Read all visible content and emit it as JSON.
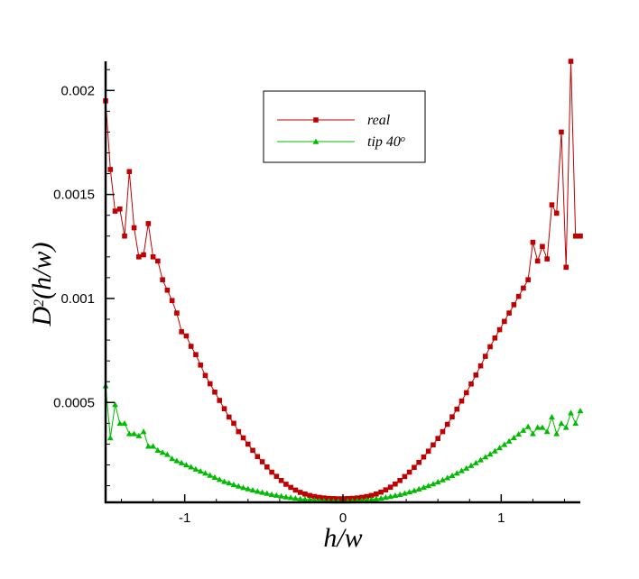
{
  "chart_data": {
    "type": "line",
    "xlabel": "h/w",
    "ylabel": {
      "base": "D",
      "sup": "2",
      "rest": "(h/w)"
    },
    "xlim": [
      -1.5,
      1.5
    ],
    "ylim": [
      2e-05,
      0.00214
    ],
    "x_ticks": [
      {
        "value": -1,
        "label": "-1"
      },
      {
        "value": 0,
        "label": "0"
      },
      {
        "value": 1,
        "label": "1"
      }
    ],
    "y_ticks": [
      {
        "value": 0.0005,
        "label": "0.0005"
      },
      {
        "value": 0.001,
        "label": "0.001"
      },
      {
        "value": 0.0015,
        "label": "0.0015"
      },
      {
        "value": 0.002,
        "label": "0.002"
      }
    ],
    "legend": {
      "placement": "top-center"
    },
    "series": [
      {
        "name": "real",
        "name_sup": "",
        "color": "#c00000",
        "marker": "square",
        "x": [
          -1.5,
          -1.47,
          -1.44,
          -1.41,
          -1.38,
          -1.35,
          -1.32,
          -1.29,
          -1.26,
          -1.23,
          -1.2,
          -1.17,
          -1.14,
          -1.11,
          -1.08,
          -1.05,
          -1.02,
          -0.99,
          -0.96,
          -0.93,
          -0.9,
          -0.87,
          -0.84,
          -0.81,
          -0.78,
          -0.75,
          -0.72,
          -0.69,
          -0.66,
          -0.63,
          -0.6,
          -0.57,
          -0.54,
          -0.51,
          -0.48,
          -0.45,
          -0.42,
          -0.39,
          -0.36,
          -0.33,
          -0.3,
          -0.27,
          -0.24,
          -0.21,
          -0.18,
          -0.15,
          -0.12,
          -0.09,
          -0.06,
          -0.03,
          0.0,
          0.03,
          0.06,
          0.09,
          0.12,
          0.15,
          0.18,
          0.21,
          0.24,
          0.27,
          0.3,
          0.33,
          0.36,
          0.39,
          0.42,
          0.45,
          0.48,
          0.51,
          0.54,
          0.57,
          0.6,
          0.63,
          0.66,
          0.69,
          0.72,
          0.75,
          0.78,
          0.81,
          0.84,
          0.87,
          0.9,
          0.93,
          0.96,
          0.99,
          1.02,
          1.05,
          1.08,
          1.11,
          1.14,
          1.17,
          1.2,
          1.23,
          1.26,
          1.29,
          1.32,
          1.35,
          1.38,
          1.41,
          1.44,
          1.47,
          1.5
        ],
        "y": [
          0.00195,
          0.00162,
          0.00142,
          0.00143,
          0.0013,
          0.00161,
          0.00134,
          0.0012,
          0.00121,
          0.00136,
          0.0012,
          0.00118,
          0.00109,
          0.00104,
          0.00099,
          0.00093,
          0.00084,
          0.00082,
          0.00077,
          0.00073,
          0.00068,
          0.00063,
          0.00059,
          0.00055,
          0.00051,
          0.00047,
          0.00043,
          0.0004,
          0.00036,
          0.00033,
          0.0003,
          0.00027,
          0.00024,
          0.000215,
          0.00019,
          0.000165,
          0.000145,
          0.000125,
          0.000107,
          9.2e-05,
          7.9e-05,
          6.8e-05,
          6e-05,
          5.3e-05,
          4.8e-05,
          4.4e-05,
          4.1e-05,
          3.9e-05,
          3.8e-05,
          3.7e-05,
          3.7e-05,
          3.8e-05,
          3.9e-05,
          4.1e-05,
          4.4e-05,
          4.8e-05,
          5.3e-05,
          6e-05,
          6.9e-05,
          8e-05,
          9.3e-05,
          0.000108,
          0.000125,
          0.000144,
          0.000165,
          0.000188,
          0.000212,
          0.000238,
          0.000266,
          0.000296,
          0.000327,
          0.00036,
          0.000395,
          0.000431,
          0.000468,
          0.000507,
          0.000547,
          0.000589,
          0.000632,
          0.000676,
          0.000722,
          0.000768,
          0.00081,
          0.00085,
          0.00089,
          0.00093,
          0.00097,
          0.00101,
          0.00105,
          0.00109,
          0.00127,
          0.00118,
          0.00125,
          0.00119,
          0.00145,
          0.00141,
          0.0018,
          0.00115,
          0.00214,
          0.0013,
          0.0013
        ]
      },
      {
        "name": "tip 40",
        "name_sup": "o",
        "color": "#00bb00",
        "marker": "triangle",
        "x": [
          -1.5,
          -1.47,
          -1.44,
          -1.41,
          -1.38,
          -1.35,
          -1.32,
          -1.29,
          -1.26,
          -1.23,
          -1.2,
          -1.17,
          -1.14,
          -1.11,
          -1.08,
          -1.05,
          -1.02,
          -0.99,
          -0.96,
          -0.93,
          -0.9,
          -0.87,
          -0.84,
          -0.81,
          -0.78,
          -0.75,
          -0.72,
          -0.69,
          -0.66,
          -0.63,
          -0.6,
          -0.57,
          -0.54,
          -0.51,
          -0.48,
          -0.45,
          -0.42,
          -0.39,
          -0.36,
          -0.33,
          -0.3,
          -0.27,
          -0.24,
          -0.21,
          -0.18,
          -0.15,
          -0.12,
          -0.09,
          -0.06,
          -0.03,
          0.0,
          0.03,
          0.06,
          0.09,
          0.12,
          0.15,
          0.18,
          0.21,
          0.24,
          0.27,
          0.3,
          0.33,
          0.36,
          0.39,
          0.42,
          0.45,
          0.48,
          0.51,
          0.54,
          0.57,
          0.6,
          0.63,
          0.66,
          0.69,
          0.72,
          0.75,
          0.78,
          0.81,
          0.84,
          0.87,
          0.9,
          0.93,
          0.96,
          0.99,
          1.02,
          1.05,
          1.08,
          1.11,
          1.14,
          1.17,
          1.2,
          1.23,
          1.26,
          1.29,
          1.32,
          1.35,
          1.38,
          1.41,
          1.44,
          1.47,
          1.5
        ],
        "y": [
          0.00058,
          0.00033,
          0.00049,
          0.0004,
          0.0004,
          0.00035,
          0.00035,
          0.00034,
          0.00036,
          0.00029,
          0.00029,
          0.00027,
          0.00026,
          0.00025,
          0.00023,
          0.00022,
          0.00021,
          0.0002,
          0.00019,
          0.00018,
          0.00017,
          0.00016,
          0.00015,
          0.00014,
          0.00013,
          0.00012,
          0.000113,
          0.000105,
          9.8e-05,
          9.1e-05,
          8.5e-05,
          7.9e-05,
          7.3e-05,
          6.8e-05,
          6.3e-05,
          5.8e-05,
          5.4e-05,
          5e-05,
          4.6e-05,
          4.3e-05,
          4e-05,
          3.7e-05,
          3.5e-05,
          3.3e-05,
          3.1e-05,
          2.9e-05,
          2.8e-05,
          2.7e-05,
          2.6e-05,
          2.6e-05,
          2.6e-05,
          2.6e-05,
          2.7e-05,
          2.8e-05,
          3e-05,
          3.2e-05,
          3.4e-05,
          3.7e-05,
          4e-05,
          4.4e-05,
          4.8e-05,
          5.3e-05,
          5.8e-05,
          6.4e-05,
          7e-05,
          7.7e-05,
          8.4e-05,
          9.2e-05,
          0.0001,
          0.000109,
          0.000118,
          0.000128,
          0.000138,
          0.000149,
          0.00016,
          0.000172,
          0.000184,
          0.000197,
          0.00021,
          0.000224,
          0.000238,
          0.000252,
          0.000267,
          0.000282,
          0.000298,
          0.000314,
          0.000331,
          0.000348,
          0.000366,
          0.000384,
          0.00035,
          0.00038,
          0.00038,
          0.00036,
          0.00043,
          0.00035,
          0.0004,
          0.00038,
          0.00045,
          0.0004,
          0.00046
        ]
      }
    ]
  }
}
